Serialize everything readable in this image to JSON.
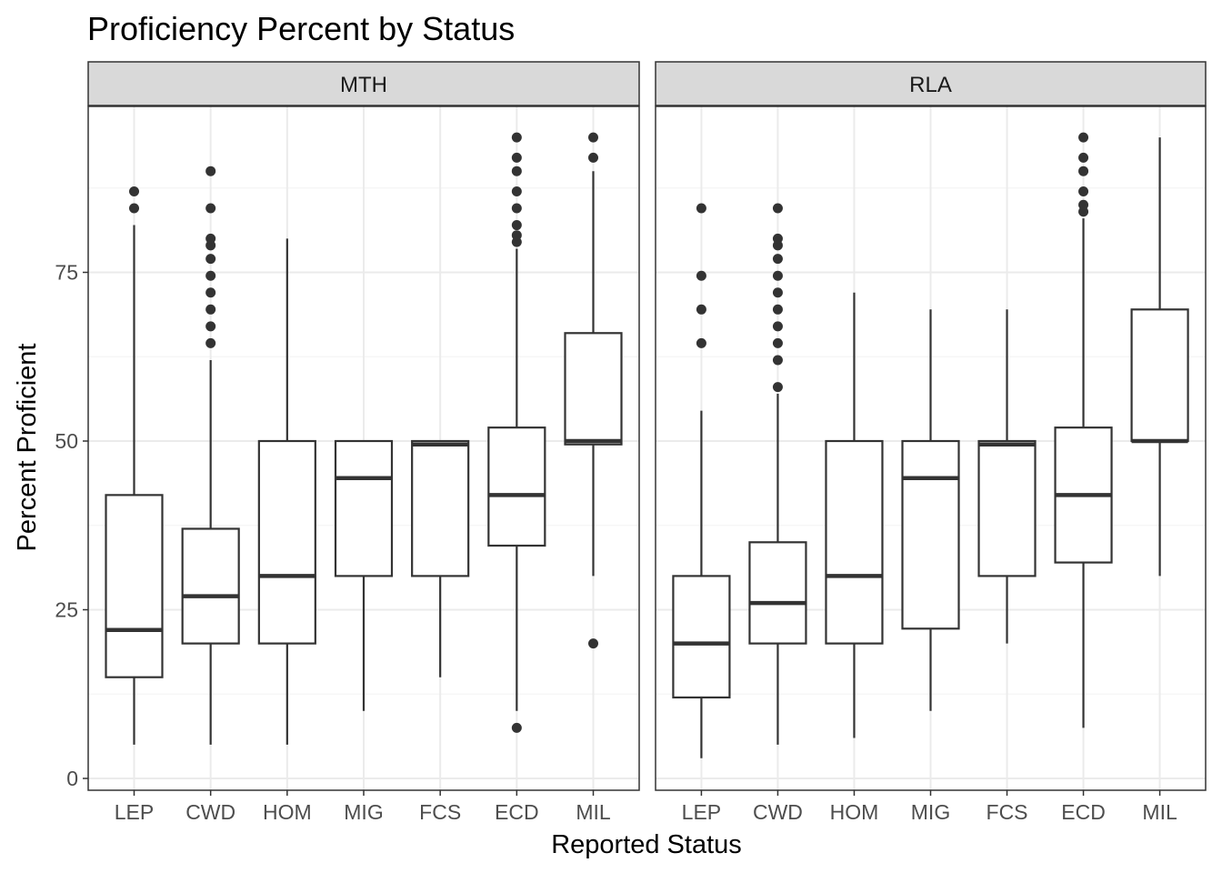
{
  "chart_data": {
    "type": "box",
    "title": "Proficiency Percent by Status",
    "xlabel": "Reported Status",
    "ylabel": "Percent Proficient",
    "ylim": [
      -1.5,
      99
    ],
    "yticks": [
      0,
      25,
      50,
      75
    ],
    "grid": true,
    "theme": "bw",
    "categories": [
      "LEP",
      "CWD",
      "HOM",
      "MIG",
      "FCS",
      "ECD",
      "MIL"
    ],
    "colors": {
      "strip_fill": "#d9d9d9",
      "grid_major": "#ebebeb",
      "grid_minor": "#f5f5f5",
      "box_stroke": "#333333",
      "outlier": "#333333"
    },
    "facets": [
      {
        "name": "MTH",
        "boxes": [
          {
            "category": "LEP",
            "min": 5,
            "q1": 15,
            "median": 22,
            "q3": 42,
            "max": 82,
            "outliers": [
              84.5,
              87
            ]
          },
          {
            "category": "CWD",
            "min": 5,
            "q1": 20,
            "median": 27,
            "q3": 37,
            "max": 62,
            "outliers": [
              64.5,
              67,
              69.5,
              72,
              74.5,
              77,
              79,
              80,
              84.5,
              90
            ]
          },
          {
            "category": "HOM",
            "min": 5,
            "q1": 20,
            "median": 30,
            "q3": 50,
            "max": 80,
            "outliers": []
          },
          {
            "category": "MIG",
            "min": 10,
            "q1": 30,
            "median": 44.5,
            "q3": 50,
            "max": 50,
            "outliers": []
          },
          {
            "category": "FCS",
            "min": 15,
            "q1": 30,
            "median": 49.5,
            "q3": 50,
            "max": 50,
            "outliers": []
          },
          {
            "category": "ECD",
            "min": 10,
            "q1": 34.5,
            "median": 42,
            "q3": 52,
            "max": 78.5,
            "outliers": [
              7.5,
              79.5,
              80.5,
              82,
              84.5,
              87,
              90,
              92,
              95
            ]
          },
          {
            "category": "MIL",
            "min": 30,
            "q1": 49.5,
            "median": 50,
            "q3": 66,
            "max": 90,
            "outliers": [
              20,
              92,
              95
            ]
          }
        ]
      },
      {
        "name": "RLA",
        "boxes": [
          {
            "category": "LEP",
            "min": 3,
            "q1": 12,
            "median": 20,
            "q3": 30,
            "max": 54.5,
            "outliers": [
              64.5,
              69.5,
              74.5,
              84.5
            ]
          },
          {
            "category": "CWD",
            "min": 5,
            "q1": 20,
            "median": 26,
            "q3": 35,
            "max": 57,
            "outliers": [
              58,
              62,
              64.5,
              67,
              69.5,
              72,
              74.5,
              77,
              79,
              80,
              84.5
            ]
          },
          {
            "category": "HOM",
            "min": 6,
            "q1": 20,
            "median": 30,
            "q3": 50,
            "max": 72,
            "outliers": []
          },
          {
            "category": "MIG",
            "min": 10,
            "q1": 22.2,
            "median": 44.5,
            "q3": 50,
            "max": 69.5,
            "outliers": []
          },
          {
            "category": "FCS",
            "min": 20,
            "q1": 30,
            "median": 49.5,
            "q3": 50,
            "max": 69.5,
            "outliers": []
          },
          {
            "category": "ECD",
            "min": 7.5,
            "q1": 32,
            "median": 42,
            "q3": 52,
            "max": 83,
            "outliers": [
              84,
              85,
              87,
              90,
              92,
              95
            ]
          },
          {
            "category": "MIL",
            "min": 30,
            "q1": 50,
            "median": 50,
            "q3": 69.5,
            "max": 95,
            "outliers": []
          }
        ]
      }
    ]
  }
}
